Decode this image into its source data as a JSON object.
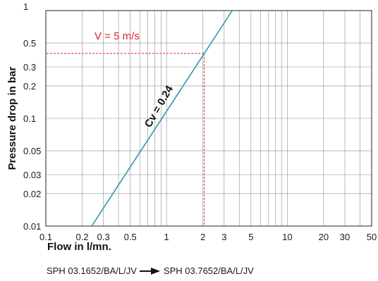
{
  "chart_data": {
    "type": "line",
    "xlabel": "Flow in l/mn.",
    "ylabel": "Pressure drop in bar",
    "x_scale": "log",
    "y_scale": "log",
    "xlim": [
      0.1,
      50
    ],
    "ylim": [
      0.01,
      1
    ],
    "grid": true,
    "x_ticks": [
      {
        "value": 0.1,
        "label": "0.1"
      },
      {
        "value": 0.2,
        "label": "0.2"
      },
      {
        "value": 0.3,
        "label": "0.3"
      },
      {
        "value": 0.5,
        "label": "0.5"
      },
      {
        "value": 1,
        "label": "1"
      },
      {
        "value": 2,
        "label": "2"
      },
      {
        "value": 3,
        "label": "3"
      },
      {
        "value": 5,
        "label": "5"
      },
      {
        "value": 10,
        "label": "10"
      },
      {
        "value": 20,
        "label": "20"
      },
      {
        "value": 30,
        "label": "30"
      },
      {
        "value": 50,
        "label": "50"
      }
    ],
    "y_ticks": [
      {
        "value": 0.01,
        "label": "0.01"
      },
      {
        "value": 0.02,
        "label": "0.02"
      },
      {
        "value": 0.03,
        "label": "0.03"
      },
      {
        "value": 0.05,
        "label": "0.05"
      },
      {
        "value": 0.1,
        "label": "0.1"
      },
      {
        "value": 0.2,
        "label": "0.2"
      },
      {
        "value": 0.3,
        "label": "0.3"
      },
      {
        "value": 0.5,
        "label": "0.5"
      },
      {
        "value": 1,
        "label": "1"
      }
    ],
    "x_gridlines": [
      0.1,
      0.2,
      0.3,
      0.4,
      0.5,
      0.6,
      0.7,
      0.8,
      0.9,
      1,
      2,
      3,
      4,
      5,
      6,
      7,
      8,
      9,
      10,
      20,
      30,
      40,
      50
    ],
    "y_gridlines": [
      0.01,
      0.02,
      0.03,
      0.05,
      0.1,
      0.2,
      0.3,
      0.5,
      1
    ],
    "series": [
      {
        "name": "Cv = 0.24",
        "color": "#2a9aa8",
        "x": [
          0.24,
          3.5
        ],
        "y": [
          0.01,
          1.0
        ]
      }
    ],
    "annotations": [
      {
        "text": "V = 5 m/s",
        "color": "#d6262e",
        "x": 2.05,
        "y": 0.4,
        "type": "crosshair-dashed"
      },
      {
        "text": "Cv = 0.24",
        "color": "#111111"
      }
    ]
  },
  "footer": {
    "from": "SPH 03.1652/BA/L/JV",
    "to": "SPH 03.7652/BA/L/JV",
    "arrow_icon": "right-arrow-icon"
  }
}
